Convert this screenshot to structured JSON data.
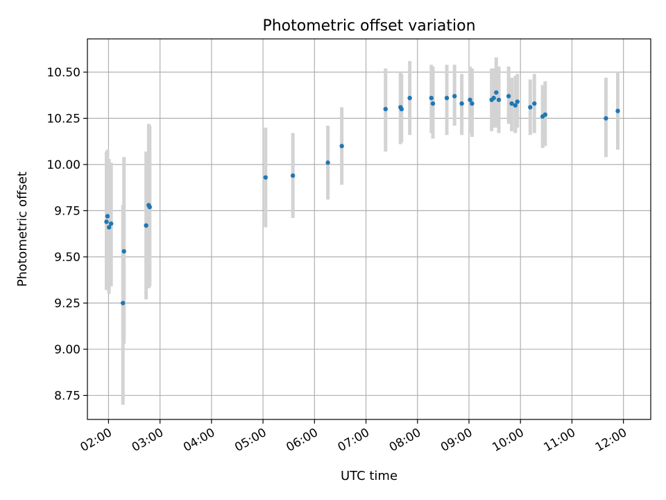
{
  "chart_data": {
    "type": "scatter",
    "title": "Photometric offset variation",
    "xlabel": "UTC time",
    "ylabel": "Photometric offset",
    "x_unit": "hours UTC",
    "xlim": [
      1.59,
      12.53
    ],
    "ylim": [
      8.62,
      10.68
    ],
    "grid": true,
    "point_color": "#1f77b4",
    "errorbar_color": "#d3d3d3",
    "x_ticks": [
      {
        "value": 2,
        "label": "02:00"
      },
      {
        "value": 3,
        "label": "03:00"
      },
      {
        "value": 4,
        "label": "04:00"
      },
      {
        "value": 5,
        "label": "05:00"
      },
      {
        "value": 6,
        "label": "06:00"
      },
      {
        "value": 7,
        "label": "07:00"
      },
      {
        "value": 8,
        "label": "08:00"
      },
      {
        "value": 9,
        "label": "09:00"
      },
      {
        "value": 10,
        "label": "10:00"
      },
      {
        "value": 11,
        "label": "11:00"
      },
      {
        "value": 12,
        "label": "12:00"
      }
    ],
    "y_ticks": [
      {
        "value": 8.75,
        "label": "8.75"
      },
      {
        "value": 9.0,
        "label": "9.00"
      },
      {
        "value": 9.25,
        "label": "9.25"
      },
      {
        "value": 9.5,
        "label": "9.50"
      },
      {
        "value": 9.75,
        "label": "9.75"
      },
      {
        "value": 10.0,
        "label": "10.00"
      },
      {
        "value": 10.25,
        "label": "10.25"
      },
      {
        "value": 10.5,
        "label": "10.50"
      }
    ],
    "points": [
      {
        "x": 1.96,
        "y": 9.69,
        "low": 9.32,
        "high": 10.07
      },
      {
        "x": 1.98,
        "y": 9.72,
        "low": 9.33,
        "high": 10.08
      },
      {
        "x": 2.01,
        "y": 9.66,
        "low": 9.3,
        "high": 10.03
      },
      {
        "x": 2.05,
        "y": 9.68,
        "low": 9.34,
        "high": 10.01
      },
      {
        "x": 2.28,
        "y": 9.25,
        "low": 8.7,
        "high": 9.78
      },
      {
        "x": 2.3,
        "y": 9.53,
        "low": 9.03,
        "high": 10.04
      },
      {
        "x": 2.73,
        "y": 9.67,
        "low": 9.27,
        "high": 10.07
      },
      {
        "x": 2.78,
        "y": 9.78,
        "low": 9.33,
        "high": 10.22
      },
      {
        "x": 2.8,
        "y": 9.77,
        "low": 9.34,
        "high": 10.21
      },
      {
        "x": 5.05,
        "y": 9.93,
        "low": 9.66,
        "high": 10.2
      },
      {
        "x": 5.58,
        "y": 9.94,
        "low": 9.71,
        "high": 10.17
      },
      {
        "x": 6.26,
        "y": 10.01,
        "low": 9.81,
        "high": 10.21
      },
      {
        "x": 6.53,
        "y": 10.1,
        "low": 9.89,
        "high": 10.31
      },
      {
        "x": 7.38,
        "y": 10.3,
        "low": 10.07,
        "high": 10.52
      },
      {
        "x": 7.67,
        "y": 10.31,
        "low": 10.11,
        "high": 10.5
      },
      {
        "x": 7.69,
        "y": 10.3,
        "low": 10.12,
        "high": 10.49
      },
      {
        "x": 7.85,
        "y": 10.36,
        "low": 10.16,
        "high": 10.56
      },
      {
        "x": 8.27,
        "y": 10.36,
        "low": 10.17,
        "high": 10.54
      },
      {
        "x": 8.3,
        "y": 10.33,
        "low": 10.14,
        "high": 10.53
      },
      {
        "x": 8.57,
        "y": 10.36,
        "low": 10.16,
        "high": 10.54
      },
      {
        "x": 8.72,
        "y": 10.37,
        "low": 10.21,
        "high": 10.54
      },
      {
        "x": 8.86,
        "y": 10.33,
        "low": 10.16,
        "high": 10.49
      },
      {
        "x": 9.02,
        "y": 10.35,
        "low": 10.17,
        "high": 10.53
      },
      {
        "x": 9.06,
        "y": 10.33,
        "low": 10.15,
        "high": 10.52
      },
      {
        "x": 9.44,
        "y": 10.35,
        "low": 10.18,
        "high": 10.52
      },
      {
        "x": 9.48,
        "y": 10.36,
        "low": 10.2,
        "high": 10.52
      },
      {
        "x": 9.53,
        "y": 10.39,
        "low": 10.2,
        "high": 10.58
      },
      {
        "x": 9.58,
        "y": 10.35,
        "low": 10.17,
        "high": 10.53
      },
      {
        "x": 9.77,
        "y": 10.37,
        "low": 10.22,
        "high": 10.53
      },
      {
        "x": 9.83,
        "y": 10.33,
        "low": 10.18,
        "high": 10.47
      },
      {
        "x": 9.9,
        "y": 10.32,
        "low": 10.17,
        "high": 10.48
      },
      {
        "x": 9.94,
        "y": 10.34,
        "low": 10.2,
        "high": 10.49
      },
      {
        "x": 10.19,
        "y": 10.31,
        "low": 10.16,
        "high": 10.46
      },
      {
        "x": 10.27,
        "y": 10.33,
        "low": 10.17,
        "high": 10.49
      },
      {
        "x": 10.43,
        "y": 10.26,
        "low": 10.09,
        "high": 10.43
      },
      {
        "x": 10.48,
        "y": 10.27,
        "low": 10.1,
        "high": 10.45
      },
      {
        "x": 11.66,
        "y": 10.25,
        "low": 10.04,
        "high": 10.47
      },
      {
        "x": 11.89,
        "y": 10.29,
        "low": 10.08,
        "high": 10.5
      }
    ]
  }
}
